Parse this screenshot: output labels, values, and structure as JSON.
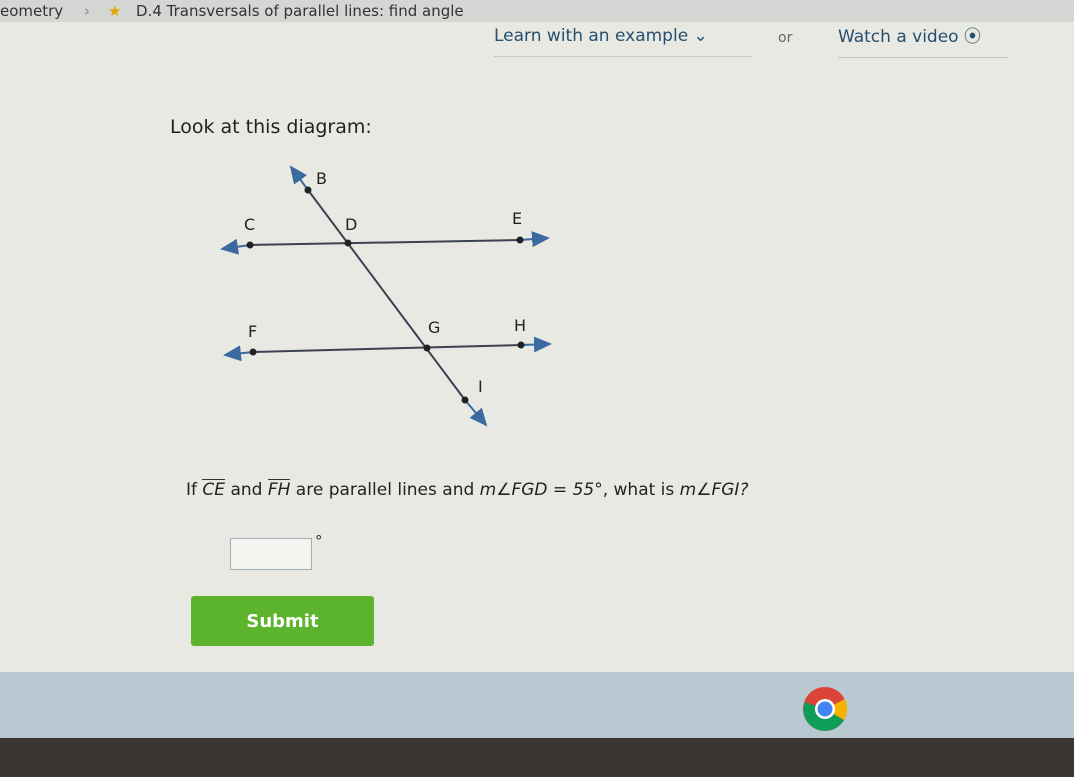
{
  "breadcrumb": {
    "subject": "eometry",
    "skill": "D.4 Transversals of parallel lines: find angle"
  },
  "help": {
    "example": "Learn with an example",
    "or": "or",
    "video": "Watch a video"
  },
  "prompt": "Look at this diagram:",
  "diagram": {
    "points": [
      "B",
      "C",
      "D",
      "E",
      "F",
      "G",
      "H",
      "I"
    ]
  },
  "question": {
    "if": "If",
    "line1": "CE",
    "and": "and",
    "line2": "FH",
    "middle": "are parallel lines and",
    "given": "m∠FGD = 55°",
    "ask": ", what is",
    "target": "m∠FGI?"
  },
  "answer": {
    "unit": "°"
  },
  "submit": "Submit"
}
